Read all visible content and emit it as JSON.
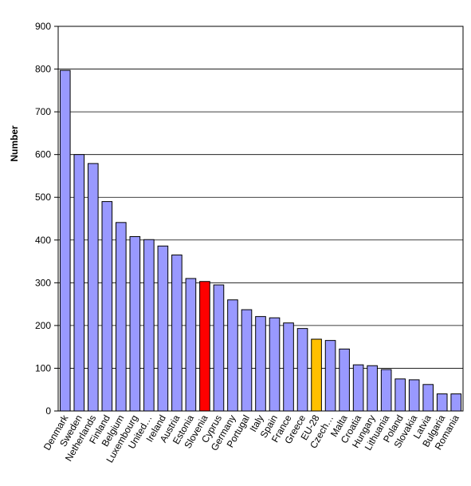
{
  "chart_data": {
    "type": "bar",
    "title": "",
    "xlabel": "",
    "ylabel": "Number",
    "ylim": [
      0,
      900
    ],
    "yticks": [
      0,
      100,
      200,
      300,
      400,
      500,
      600,
      700,
      800,
      900
    ],
    "grid": true,
    "legend": "none",
    "categories": [
      "Denmark",
      "Sweden",
      "Netherlands",
      "Finland",
      "Belgium",
      "Luxembourg",
      "United…",
      "Ireland",
      "Austria",
      "Estonia",
      "Slovenia",
      "Cyprus",
      "Germany",
      "Portugal",
      "Italy",
      "Spain",
      "France",
      "Greece",
      "EU-28",
      "Czech…",
      "Malta",
      "Croatia",
      "Hungary",
      "Lithuania",
      "Poland",
      "Slovakia",
      "Latvia",
      "Bulgaria",
      "Romania"
    ],
    "values": [
      797,
      600,
      579,
      490,
      441,
      408,
      401,
      386,
      365,
      310,
      303,
      295,
      260,
      237,
      221,
      218,
      206,
      193,
      168,
      165,
      145,
      108,
      106,
      97,
      75,
      73,
      62,
      40,
      40
    ],
    "colors": {
      "default": "#9999ff",
      "Slovenia": "#ff0000",
      "EU-28": "#ffc000"
    }
  }
}
